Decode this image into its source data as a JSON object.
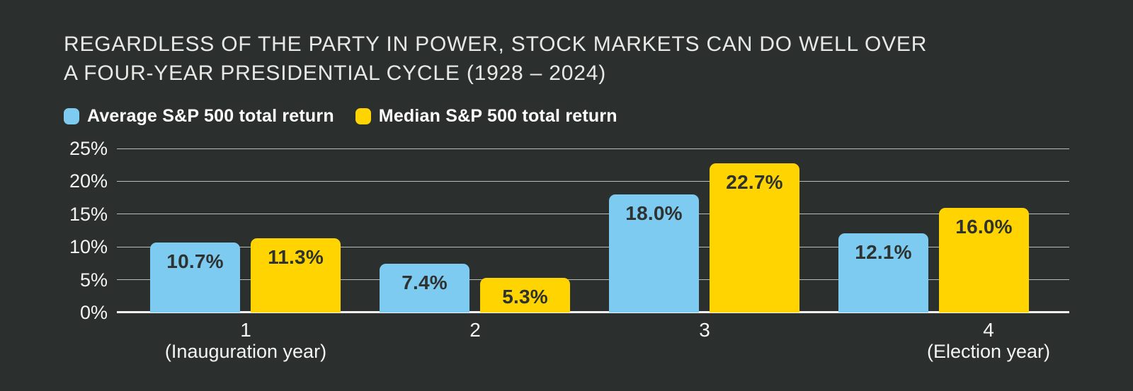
{
  "title": {
    "line1": "REGARDLESS OF THE PARTY IN POWER, STOCK MARKETS CAN DO WELL OVER",
    "line2": "A FOUR-YEAR PRESIDENTIAL CYCLE (1928 – 2024)"
  },
  "chart_data": {
    "type": "bar",
    "title": "REGARDLESS OF THE PARTY IN POWER, STOCK MARKETS CAN DO WELL OVER A FOUR-YEAR PRESIDENTIAL CYCLE (1928 – 2024)",
    "categories": [
      "1",
      "2",
      "3",
      "4"
    ],
    "category_sublabels": [
      "(Inauguration year)",
      "",
      "",
      "(Election year)"
    ],
    "series": [
      {
        "name": "Average S&P 500 total return",
        "color": "#7DCBF0",
        "values": [
          10.7,
          7.4,
          18.0,
          12.1
        ],
        "data_labels": [
          "10.7%",
          "7.4%",
          "18.0%",
          "12.1%"
        ]
      },
      {
        "name": "Median S&P 500 total return",
        "color": "#FFD400",
        "values": [
          11.3,
          5.3,
          22.7,
          16.0
        ],
        "data_labels": [
          "11.3%",
          "5.3%",
          "22.7%",
          "16.0%"
        ]
      }
    ],
    "xlabel": "",
    "ylabel": "",
    "ylim": [
      0,
      25
    ],
    "ytick_step": 5,
    "ytick_labels": [
      "0%",
      "5%",
      "10%",
      "15%",
      "20%",
      "25%"
    ],
    "grid": "horizontal",
    "legend_position": "top-left",
    "colors": {
      "background": "#2B2F2D",
      "axis_text": "#F3F4F3",
      "bar_value_text": "#2E3231",
      "gridline": "#F3F4F3"
    }
  }
}
